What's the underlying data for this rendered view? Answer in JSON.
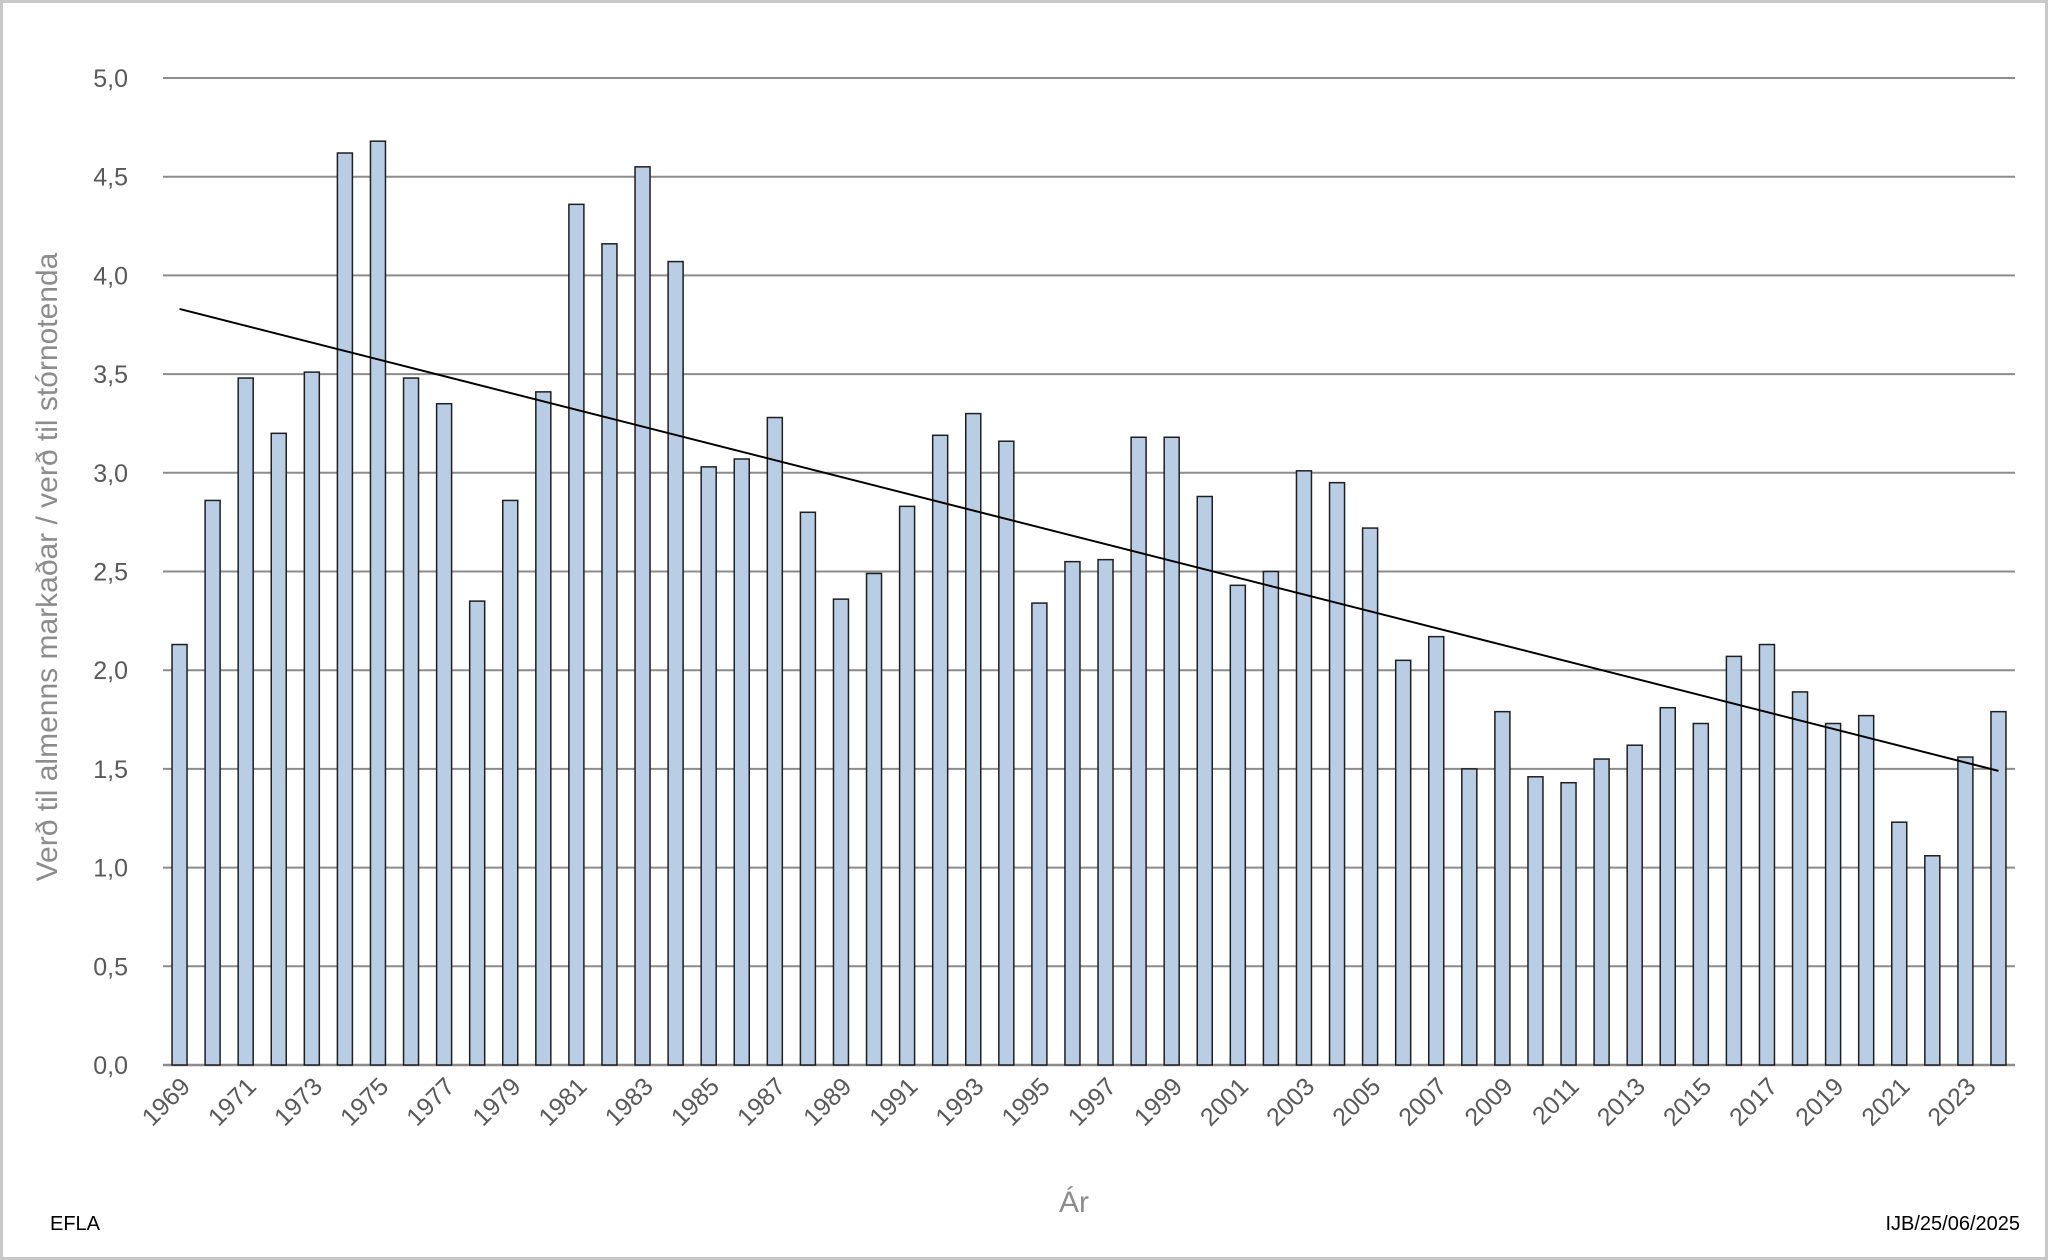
{
  "chart_data": {
    "type": "bar",
    "xlabel": "Ár",
    "ylabel": "Verð til almenns markaðar / verð til stórnotenda",
    "ylim": [
      0,
      5
    ],
    "y_ticks": [
      "0,0",
      "0,5",
      "1,0",
      "1,5",
      "2,0",
      "2,5",
      "3,0",
      "3,5",
      "4,0",
      "4,5",
      "5,0"
    ],
    "grid": true,
    "legend": "none",
    "categories": [
      "1969",
      "1970",
      "1971",
      "1972",
      "1973",
      "1974",
      "1975",
      "1976",
      "1977",
      "1978",
      "1979",
      "1980",
      "1981",
      "1982",
      "1983",
      "1984",
      "1985",
      "1986",
      "1987",
      "1988",
      "1989",
      "1990",
      "1991",
      "1992",
      "1993",
      "1994",
      "1995",
      "1996",
      "1997",
      "1998",
      "1999",
      "2000",
      "2001",
      "2002",
      "2003",
      "2004",
      "2005",
      "2006",
      "2007",
      "2008",
      "2009",
      "2010",
      "2011",
      "2012",
      "2013",
      "2014",
      "2015",
      "2016",
      "2017",
      "2018",
      "2019",
      "2020",
      "2021",
      "2022",
      "2023",
      "2024"
    ],
    "x_tick_labels": [
      "1969",
      "1971",
      "1973",
      "1975",
      "1977",
      "1979",
      "1981",
      "1983",
      "1985",
      "1987",
      "1989",
      "1991",
      "1993",
      "1995",
      "1997",
      "1999",
      "2001",
      "2003",
      "2005",
      "2007",
      "2009",
      "2011",
      "2013",
      "2015",
      "2017",
      "2019",
      "2021",
      "2023"
    ],
    "values": [
      2.13,
      2.86,
      3.48,
      3.2,
      3.51,
      4.62,
      4.68,
      3.48,
      3.35,
      2.35,
      2.86,
      3.41,
      4.36,
      4.16,
      4.55,
      4.07,
      3.03,
      3.07,
      3.28,
      2.8,
      2.36,
      2.49,
      2.83,
      3.19,
      3.3,
      3.16,
      2.34,
      2.55,
      2.56,
      3.18,
      3.18,
      2.88,
      2.43,
      2.5,
      3.01,
      2.95,
      2.72,
      2.05,
      2.17,
      1.5,
      1.79,
      1.46,
      1.43,
      1.55,
      1.62,
      1.81,
      1.73,
      2.07,
      2.13,
      1.89,
      1.73,
      1.77,
      1.23,
      1.06,
      1.56,
      1.79
    ],
    "trendline": {
      "start": 3.83,
      "end": 1.49
    },
    "colors": {
      "bar_fill": "#b9cde5",
      "bar_stroke": "#1f1f1f",
      "grid": "#8c8c8c",
      "trendline": "#000000"
    }
  },
  "footer": {
    "left_label": "EFLA",
    "right_label": "IJB/25/06/2025"
  }
}
